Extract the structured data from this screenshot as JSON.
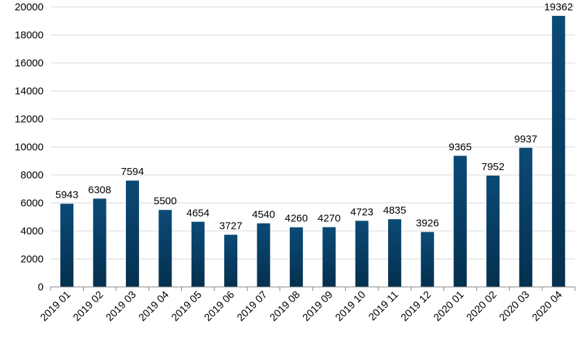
{
  "chart_data": {
    "type": "bar",
    "title": "",
    "xlabel": "",
    "ylabel": "",
    "categories": [
      "2019 01",
      "2019 02",
      "2019 03",
      "2019 04",
      "2019 05",
      "2019 06",
      "2019 07",
      "2019 08",
      "2019 09",
      "2019 10",
      "2019 11",
      "2019 12",
      "2020 01",
      "2020 02",
      "2020 03",
      "2020 04"
    ],
    "values": [
      5943,
      6308,
      7594,
      5500,
      4654,
      3727,
      4540,
      4260,
      4270,
      4723,
      4835,
      3926,
      9365,
      7952,
      9937,
      19362
    ],
    "data_labels": [
      "5943",
      "6308",
      "7594",
      "5500",
      "4654",
      "3727",
      "4540",
      "4260",
      "4270",
      "4723",
      "4835",
      "3926",
      "9365",
      "7952",
      "9937",
      "19362"
    ],
    "ylim": [
      0,
      20000
    ],
    "y_ticks": [
      0,
      2000,
      4000,
      6000,
      8000,
      10000,
      12000,
      14000,
      16000,
      18000,
      20000
    ],
    "y_tick_labels": [
      "0",
      "2000",
      "4000",
      "6000",
      "8000",
      "10000",
      "12000",
      "14000",
      "16000",
      "18000",
      "20000"
    ],
    "grid": true,
    "legend": "none",
    "bar_gradient": [
      "#05304f",
      "#0b4a76"
    ]
  }
}
